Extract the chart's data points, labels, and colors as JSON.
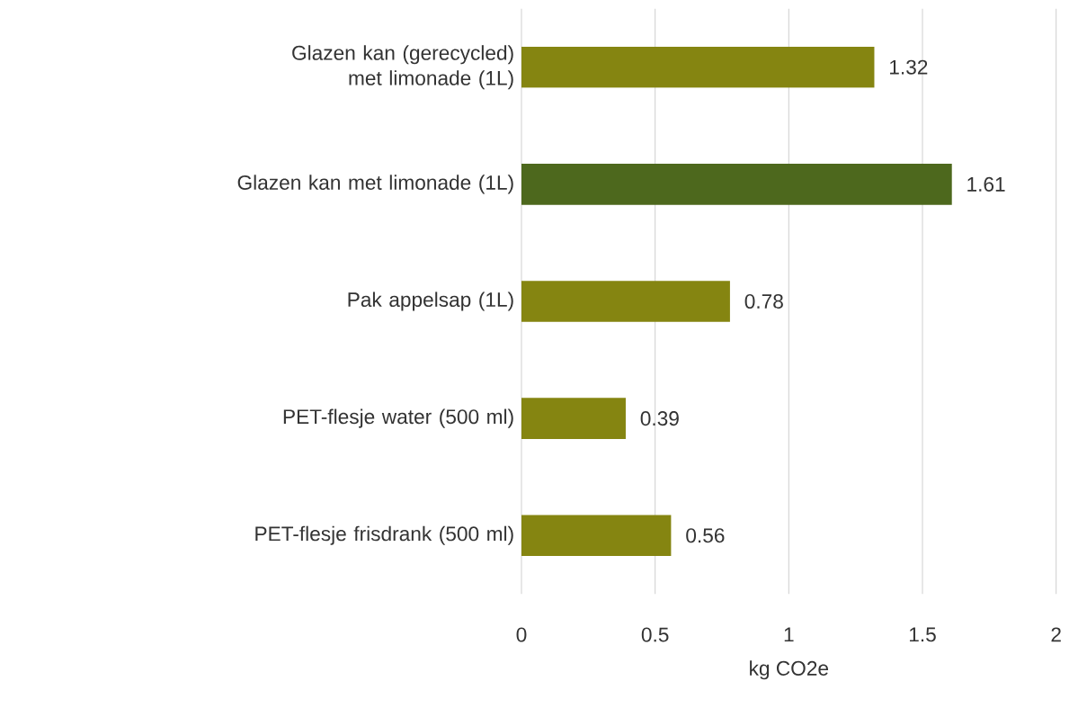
{
  "chart_data": {
    "type": "bar",
    "orientation": "horizontal",
    "categories": [
      "Glazen kan (gerecycled) met limonade (1L)",
      "Glazen kan met limonade (1L)",
      "Pak appelsap (1L)",
      "PET-flesje water (500 ml)",
      "PET-flesje frisdrank (500 ml)"
    ],
    "values": [
      1.32,
      1.61,
      0.78,
      0.39,
      0.56
    ],
    "colors": [
      "#858511",
      "#4d681d",
      "#858511",
      "#858511",
      "#858511"
    ],
    "xlim": [
      0,
      2
    ],
    "xticks": [
      0,
      0.5,
      1,
      1.5,
      2
    ],
    "xlabel": "kg CO2e",
    "grid": "x",
    "data_labels": true
  }
}
